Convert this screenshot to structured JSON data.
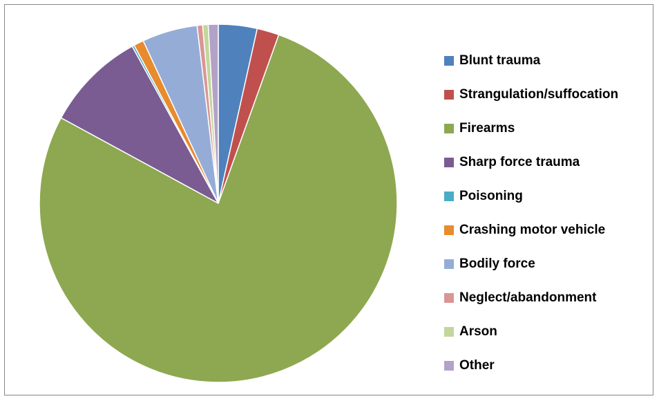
{
  "chart_data": {
    "type": "pie",
    "title": "",
    "legend_position": "right",
    "slices": [
      {
        "label": "Blunt trauma",
        "value": 3.5,
        "color": "#4F81BD"
      },
      {
        "label": "Strangulation/suffocation",
        "value": 2.0,
        "color": "#C0504D"
      },
      {
        "label": "Firearms",
        "value": 77.5,
        "color": "#8DA850"
      },
      {
        "label": "Sharp force trauma",
        "value": 9.1,
        "color": "#7A5B92"
      },
      {
        "label": "Poisoning",
        "value": 0.2,
        "color": "#4BACC6"
      },
      {
        "label": "Crashing motor vehicle",
        "value": 0.9,
        "color": "#E88A2E"
      },
      {
        "label": "Bodily force",
        "value": 5.0,
        "color": "#95ADD6"
      },
      {
        "label": "Neglect/abandonment",
        "value": 0.5,
        "color": "#D99694"
      },
      {
        "label": "Arson",
        "value": 0.5,
        "color": "#C3D69B"
      },
      {
        "label": "Other",
        "value": 0.9,
        "color": "#B3A2C7"
      }
    ]
  }
}
